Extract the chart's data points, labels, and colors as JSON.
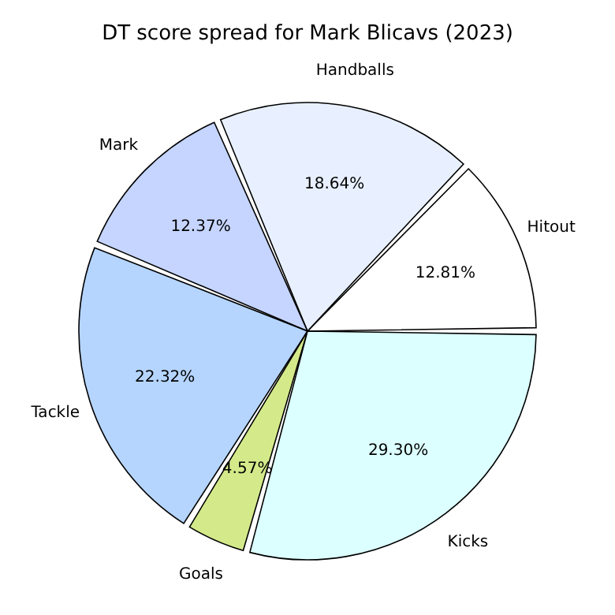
{
  "chart_data": {
    "type": "pie",
    "title": "DT score spread for Mark Blicavs (2023)",
    "categories": [
      "Hitout",
      "Handballs",
      "Mark",
      "Tackle",
      "Goals",
      "Kicks"
    ],
    "values": [
      12.81,
      18.64,
      12.37,
      22.32,
      4.57,
      29.3
    ],
    "value_labels": [
      "12.81%",
      "18.64%",
      "12.37%",
      "22.32%",
      "4.57%",
      "29.30%"
    ],
    "colors": [
      "#ffffff",
      "#e8f0ff",
      "#c5d5ff",
      "#b5d5ff",
      "#d4ea8a",
      "#dcffff"
    ],
    "legend": false
  }
}
